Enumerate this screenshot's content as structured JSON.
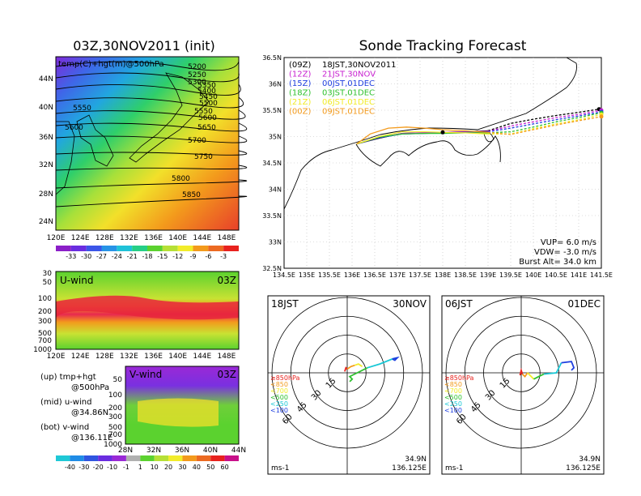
{
  "colors": {
    "red": "#e8221e",
    "orange": "#f39a1c",
    "yellow": "#f2ec2a",
    "green": "#5bd22f",
    "cyan": "#19c8d6",
    "blue": "#1f3fe0",
    "purple": "#9a29d6",
    "black": "#000000"
  },
  "left_top": {
    "title": "03Z,30NOV2011 (init)",
    "overlay_label": "temp(C)+hgt(m)@500hPa",
    "lat_ticks": [
      "44N",
      "40N",
      "36N",
      "32N",
      "28N",
      "24N"
    ],
    "lon_ticks": [
      "120E",
      "124E",
      "128E",
      "132E",
      "136E",
      "140E",
      "144E",
      "148E"
    ],
    "contours": [
      "5200",
      "5250",
      "5300",
      "5350",
      "5400",
      "5450",
      "5500",
      "5550",
      "5550",
      "5600",
      "5600",
      "5650",
      "5700",
      "5750",
      "5800",
      "5850"
    ],
    "colorbar": [
      "-33",
      "-30",
      "-27",
      "-24",
      "-21",
      "-18",
      "-15",
      "-12",
      "-9",
      "-6",
      "-3"
    ]
  },
  "left_mid": {
    "title": "U-wind",
    "time": "03Z",
    "p_ticks": [
      "30",
      "50",
      "100",
      "200",
      "300",
      "500",
      "700",
      "1000"
    ],
    "lon_ticks": [
      "120E",
      "124E",
      "128E",
      "132E",
      "136E",
      "140E",
      "144E",
      "148E"
    ]
  },
  "left_bot": {
    "title": "V-wind",
    "time": "03Z",
    "p_ticks": [
      "50",
      "100",
      "200",
      "300",
      "500",
      "700",
      "1000"
    ],
    "lat_ticks": [
      "28N",
      "32N",
      "36N",
      "40N",
      "44N"
    ],
    "colorbar": [
      "-40",
      "-30",
      "-20",
      "-10",
      "-1",
      "1",
      "10",
      "20",
      "30",
      "40",
      "50",
      "60"
    ]
  },
  "legend_text": {
    "up": "(up) tmp+hgt",
    "up2": "@500hPa",
    "mid": "(mid) u-wind",
    "mid2": "@34.86N",
    "bot": "(bot) v-wind",
    "bot2": "@136.11E"
  },
  "right_top": {
    "title": "Sonde Tracking Forecast",
    "entries": [
      {
        "code": "(09Z)",
        "label": "18JST,30NOV2011",
        "color": "#000000"
      },
      {
        "code": "(12Z)",
        "label": "21JST,30NOV",
        "color": "#c81fd0"
      },
      {
        "code": "(15Z)",
        "label": "00JST,01DEC",
        "color": "#1f3fe0"
      },
      {
        "code": "(18Z)",
        "label": "03JST,01DEC",
        "color": "#2fc12f"
      },
      {
        "code": "(21Z)",
        "label": "06JST,01DEC",
        "color": "#f2ec2a"
      },
      {
        "code": "(00Z)",
        "label": "09JST,01DEC",
        "color": "#f39a1c"
      }
    ],
    "lat_ticks": [
      "36.5N",
      "36N",
      "35.5N",
      "35N",
      "34.5N",
      "34N",
      "33.5N",
      "33N",
      "32.5N"
    ],
    "lon_ticks": [
      "134.5E",
      "135E",
      "135.5E",
      "136E",
      "136.5E",
      "137E",
      "137.5E",
      "138E",
      "138.5E",
      "139E",
      "139.5E",
      "140E",
      "140.5E",
      "141E",
      "141.5E"
    ],
    "params": [
      "VUP= 6.0 m/s",
      "VDW= -3.0 m/s",
      "Burst Alt= 34.0 km"
    ]
  },
  "hodo_left": {
    "time": "18JST",
    "date": "30NOV",
    "ring_labels": [
      "15",
      "30",
      "45",
      "60"
    ],
    "levels": [
      "≥850hPa",
      "<850",
      "<700",
      "<500",
      "<250",
      "<100"
    ],
    "unit": "ms-1",
    "lat": "34.9N",
    "lon": "136.125E"
  },
  "hodo_right": {
    "time": "06JST",
    "date": "01DEC",
    "ring_labels": [
      "15",
      "30",
      "45",
      "60"
    ],
    "levels": [
      "≥850hPa",
      "<850",
      "<700",
      "<500",
      "<250",
      "<100"
    ],
    "unit": "ms-1",
    "lat": "34.9N",
    "lon": "136.125E"
  },
  "chart_data": [
    {
      "type": "heatmap",
      "title": "03Z,30NOV2011 (init)",
      "field": "temp(C)+hgt(m)@500hPa",
      "xlim": [
        120,
        150
      ],
      "ylim": [
        22,
        48
      ],
      "contour_values_m": [
        5200,
        5250,
        5300,
        5350,
        5400,
        5450,
        5500,
        5550,
        5600,
        5650,
        5700,
        5750,
        5800,
        5850
      ],
      "colorbar_C": [
        -33,
        -30,
        -27,
        -24,
        -21,
        -18,
        -15,
        -12,
        -9,
        -6,
        -3
      ]
    },
    {
      "type": "heatmap",
      "title": "U-wind",
      "time": "03Z",
      "xlim": [
        120,
        150
      ],
      "ylim_hPa": [
        1000,
        30
      ],
      "note_level": "@34.86N"
    },
    {
      "type": "heatmap",
      "title": "V-wind",
      "time": "03Z",
      "xlim": [
        28,
        44
      ],
      "ylim_hPa": [
        1000,
        50
      ],
      "note_level": "@136.11E",
      "colorbar": [
        -40,
        -30,
        -20,
        -10,
        -1,
        1,
        10,
        20,
        30,
        40,
        50,
        60
      ]
    },
    {
      "type": "line",
      "title": "Sonde Tracking Forecast",
      "xlim": [
        134.5,
        141.5
      ],
      "ylim": [
        32.5,
        36.5
      ],
      "series": [
        {
          "name": "18JST,30NOV2011",
          "x": [
            136.1,
            136.6,
            137.1,
            137.6,
            138.0,
            138.5,
            139.0,
            139.5,
            140.0,
            140.5,
            141.0,
            141.45
          ],
          "y": [
            34.86,
            34.97,
            35.06,
            35.07,
            35.08,
            35.09,
            35.11,
            35.25,
            35.33,
            35.4,
            35.46,
            35.52
          ]
        },
        {
          "name": "21JST,30NOV",
          "x": [
            136.1,
            136.6,
            137.1,
            137.6,
            138.0,
            138.5,
            139.0,
            139.5,
            140.0,
            140.5,
            141.0,
            141.5
          ],
          "y": [
            34.86,
            34.98,
            35.06,
            35.07,
            35.08,
            35.09,
            35.1,
            35.2,
            35.28,
            35.36,
            35.42,
            35.5
          ]
        },
        {
          "name": "00JST,01DEC",
          "x": [
            136.1,
            136.6,
            137.1,
            137.6,
            138.0,
            138.5,
            139.0,
            139.5,
            140.0,
            140.5,
            141.0,
            141.5
          ],
          "y": [
            34.86,
            34.98,
            35.05,
            35.06,
            35.07,
            35.08,
            35.09,
            35.16,
            35.24,
            35.32,
            35.39,
            35.47
          ]
        },
        {
          "name": "03JST,01DEC",
          "x": [
            136.1,
            136.6,
            137.1,
            137.6,
            138.0,
            138.5,
            139.0,
            139.5,
            140.0,
            140.5,
            141.0,
            141.5
          ],
          "y": [
            34.86,
            34.99,
            35.05,
            35.06,
            35.06,
            35.07,
            35.07,
            35.09,
            35.18,
            35.28,
            35.36,
            35.45
          ]
        },
        {
          "name": "06JST,01DEC",
          "x": [
            136.1,
            136.6,
            137.1,
            137.6,
            138.0,
            138.5,
            139.0,
            139.5,
            140.0,
            140.5,
            141.0,
            141.5
          ],
          "y": [
            34.86,
            35.0,
            35.09,
            35.09,
            35.08,
            35.07,
            35.05,
            35.05,
            35.15,
            35.24,
            35.32,
            35.42
          ]
        },
        {
          "name": "09JST,01DEC",
          "x": [
            136.1,
            136.4,
            136.8,
            137.2,
            137.6,
            138.0,
            138.5,
            139.0,
            139.5,
            140.0,
            140.5,
            141.0,
            141.5
          ],
          "y": [
            34.86,
            35.05,
            35.16,
            35.18,
            35.16,
            35.13,
            35.11,
            35.08,
            35.04,
            35.13,
            35.22,
            35.3,
            35.38
          ]
        }
      ],
      "params": {
        "VUP_m_s": 6.0,
        "VDW_m_s": -3.0,
        "burst_alt_km": 34.0
      }
    },
    {
      "type": "line",
      "title": "hodograph 18JST 30NOV",
      "ring_speeds_ms": [
        15,
        30,
        45,
        60
      ],
      "series": [
        {
          "name": "≥850hPa",
          "u": [
            -2,
            -1,
            0
          ],
          "v": [
            1,
            4,
            3
          ]
        },
        {
          "name": "<850",
          "u": [
            0,
            3,
            6
          ],
          "v": [
            3,
            5,
            6
          ]
        },
        {
          "name": "<700",
          "u": [
            6,
            9,
            12
          ],
          "v": [
            6,
            7,
            5
          ]
        },
        {
          "name": "<500",
          "u": [
            2,
            4,
            2,
            8,
            16
          ],
          "v": [
            -7,
            -5,
            -3,
            0,
            4
          ]
        },
        {
          "name": "<250",
          "u": [
            16,
            26,
            36,
            40
          ],
          "v": [
            4,
            7,
            11,
            12
          ]
        },
        {
          "name": "<100",
          "u": [
            36,
            40,
            38,
            36
          ],
          "v": [
            11,
            12,
            10,
            11
          ]
        }
      ]
    },
    {
      "type": "line",
      "title": "hodograph 06JST 01DEC",
      "ring_speeds_ms": [
        15,
        30,
        45,
        60
      ],
      "series": [
        {
          "name": "≥850hPa",
          "u": [
            -1,
            0,
            1
          ],
          "v": [
            -2,
            2,
            -1
          ]
        },
        {
          "name": "<850",
          "u": [
            1,
            3,
            5
          ],
          "v": [
            -1,
            -3,
            0
          ]
        },
        {
          "name": "<700",
          "u": [
            5,
            7,
            10
          ],
          "v": [
            0,
            -2,
            -5
          ]
        },
        {
          "name": "<500",
          "u": [
            10,
            14,
            18
          ],
          "v": [
            -5,
            -3,
            -1
          ]
        },
        {
          "name": "<250",
          "u": [
            18,
            28,
            32
          ],
          "v": [
            -1,
            0,
            8
          ]
        },
        {
          "name": "<100",
          "u": [
            32,
            40,
            42,
            40
          ],
          "v": [
            8,
            9,
            4,
            2
          ]
        }
      ]
    }
  ]
}
